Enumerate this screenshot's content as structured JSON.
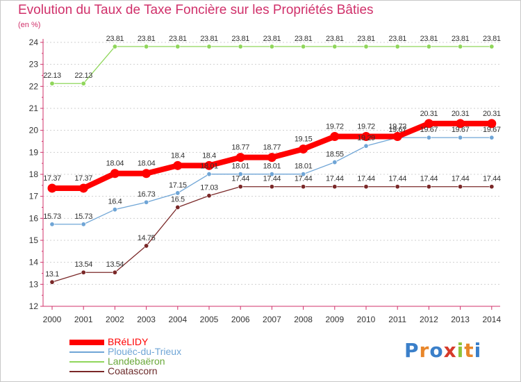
{
  "chart_data": {
    "type": "line",
    "title": "Evolution du Taux de Taxe Foncière sur les Propriétés Bâties",
    "unit_label": "(en %)",
    "x": [
      "2000",
      "2001",
      "2002",
      "2003",
      "2004",
      "2005",
      "2006",
      "2007",
      "2008",
      "2009",
      "2010",
      "2011",
      "2012",
      "2013",
      "2014"
    ],
    "ylim": [
      12,
      24
    ],
    "yticks": [
      "12",
      "13",
      "14",
      "15",
      "16",
      "17",
      "18",
      "19",
      "20",
      "21",
      "22",
      "23",
      "24"
    ],
    "grid": "horizontal dashed",
    "legend_position": "bottom-left",
    "series": [
      {
        "name": "BRéLIDY",
        "color": "#ff0000",
        "values": [
          17.37,
          17.37,
          18.04,
          18.04,
          18.4,
          18.4,
          18.77,
          18.77,
          19.15,
          19.72,
          19.72,
          19.72,
          20.31,
          20.31,
          20.31
        ],
        "labels": [
          "17.37",
          "17.37",
          "18.04",
          "18.04",
          "18.4",
          "18.4",
          "18.77",
          "18.77",
          "19.15",
          "19.72",
          "19.72",
          "19.72",
          "20.31",
          "20.31",
          "20.31"
        ]
      },
      {
        "name": "Plouëc-du-Trieux",
        "color": "#6fa5d6",
        "values": [
          15.73,
          15.73,
          16.4,
          16.73,
          17.15,
          18.01,
          18.01,
          18.01,
          18.01,
          18.55,
          19.29,
          19.67,
          19.67,
          19.67,
          19.67
        ],
        "labels": [
          "15.73",
          "15.73",
          "16.4",
          "16.73",
          "17.15",
          "18.01",
          "18.01",
          "18.01",
          "18.01",
          "18.55",
          "19.29",
          "19.67",
          "19.67",
          "19.67",
          "19.67"
        ]
      },
      {
        "name": "Landebaëron",
        "color": "#8fd65a",
        "values": [
          22.13,
          22.13,
          23.81,
          23.81,
          23.81,
          23.81,
          23.81,
          23.81,
          23.81,
          23.81,
          23.81,
          23.81,
          23.81,
          23.81,
          23.81
        ],
        "labels": [
          "22.13",
          "22.13",
          "23.81",
          "23.81",
          "23.81",
          "23.81",
          "23.81",
          "23.81",
          "23.81",
          "23.81",
          "23.81",
          "23.81",
          "23.81",
          "23.81",
          "23.81"
        ]
      },
      {
        "name": "Coatascorn",
        "color": "#7a2828",
        "values": [
          13.1,
          13.54,
          13.54,
          14.75,
          16.5,
          17.03,
          17.44,
          17.44,
          17.44,
          17.44,
          17.44,
          17.44,
          17.44,
          17.44,
          17.44
        ],
        "labels": [
          "13.1",
          "13.54",
          "13.54",
          "14.75",
          "16.5",
          "17.03",
          "17.44",
          "17.44",
          "17.44",
          "17.44",
          "17.44",
          "17.44",
          "17.44",
          "17.44",
          "17.44"
        ]
      }
    ]
  },
  "logo": {
    "letters": [
      "P",
      "r",
      "o",
      "x",
      "i",
      "t",
      "i"
    ],
    "colors": [
      "#3a7fc9",
      "#e8862a",
      "#3a7fc9",
      "#d63a2a",
      "#8fc43a",
      "#e8862a",
      "#3a7fc9"
    ]
  }
}
